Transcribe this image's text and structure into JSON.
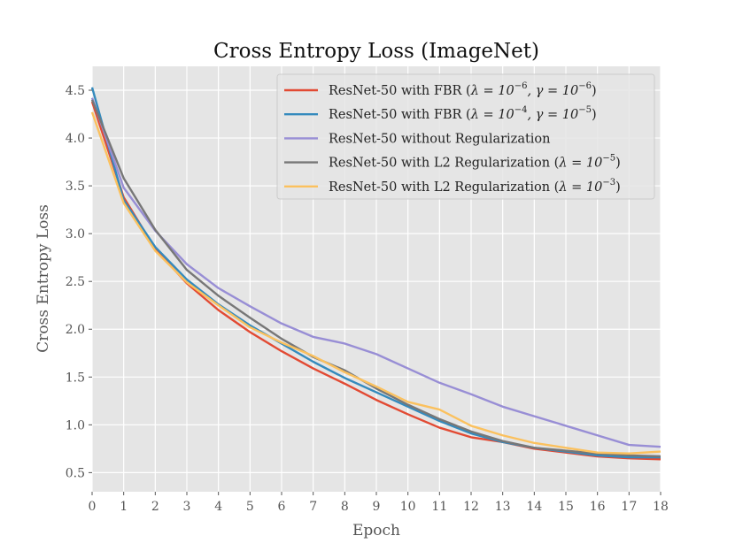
{
  "chart_data": {
    "type": "line",
    "title": "Cross Entropy Loss (ImageNet)",
    "xlabel": "Epoch",
    "ylabel": "Cross Entropy Loss",
    "xlim": [
      0,
      18
    ],
    "ylim": [
      0.3,
      4.75
    ],
    "x_ticks": [
      0,
      1,
      2,
      3,
      4,
      5,
      6,
      7,
      8,
      9,
      10,
      11,
      12,
      13,
      14,
      15,
      16,
      17,
      18
    ],
    "y_ticks": [
      0.5,
      1.0,
      1.5,
      2.0,
      2.5,
      3.0,
      3.5,
      4.0,
      4.5
    ],
    "y_tick_labels": [
      "0.5",
      "1.0",
      "1.5",
      "2.0",
      "2.5",
      "3.0",
      "3.5",
      "4.0",
      "4.5"
    ],
    "grid": true,
    "legend_position": "top-right",
    "x": [
      0,
      1,
      2,
      3,
      4,
      5,
      6,
      7,
      8,
      9,
      10,
      11,
      12,
      13,
      14,
      15,
      16,
      17,
      18
    ],
    "series": [
      {
        "name": "ResNet-50 with FBR",
        "legend_prefix": "ResNet-50 with FBR (",
        "legend_math": [
          [
            "λ = 10",
            "−6"
          ],
          [
            ", γ = 10",
            "−6"
          ]
        ],
        "legend_suffix": ")",
        "color": "#E24A33",
        "values": [
          4.38,
          3.38,
          2.84,
          2.48,
          2.2,
          1.97,
          1.77,
          1.59,
          1.43,
          1.26,
          1.11,
          0.97,
          0.87,
          0.82,
          0.75,
          0.71,
          0.67,
          0.65,
          0.64
        ]
      },
      {
        "name": "ResNet-50 with FBR",
        "legend_prefix": "ResNet-50 with FBR (",
        "legend_math": [
          [
            "λ = 10",
            "−4"
          ],
          [
            ", γ = 10",
            "−5"
          ]
        ],
        "legend_suffix": ")",
        "color": "#348ABD",
        "values": [
          4.53,
          3.35,
          2.86,
          2.52,
          2.26,
          2.04,
          1.85,
          1.66,
          1.49,
          1.34,
          1.19,
          1.04,
          0.91,
          0.82,
          0.76,
          0.72,
          0.68,
          0.66,
          0.66
        ]
      },
      {
        "name": "ResNet-50 without Regularization",
        "legend_prefix": "ResNet-50 without Regularization",
        "legend_math": [],
        "legend_suffix": "",
        "color": "#988ED5",
        "values": [
          4.42,
          3.48,
          3.03,
          2.68,
          2.43,
          2.24,
          2.06,
          1.92,
          1.85,
          1.74,
          1.59,
          1.44,
          1.32,
          1.19,
          1.09,
          0.99,
          0.89,
          0.79,
          0.77
        ]
      },
      {
        "name": "ResNet-50 with L2 Regularization",
        "legend_prefix": "ResNet-50 with L2 Regularization (",
        "legend_math": [
          [
            "λ = 10",
            "−5"
          ]
        ],
        "legend_suffix": ")",
        "color": "#777777",
        "values": [
          4.4,
          3.58,
          3.04,
          2.62,
          2.35,
          2.12,
          1.9,
          1.71,
          1.57,
          1.38,
          1.21,
          1.06,
          0.93,
          0.83,
          0.76,
          0.73,
          0.7,
          0.68,
          0.67
        ]
      },
      {
        "name": "ResNet-50 with L2 Regularization",
        "legend_prefix": "ResNet-50 with L2 Regularization (",
        "legend_math": [
          [
            "λ = 10",
            "−3"
          ]
        ],
        "legend_suffix": ")",
        "color": "#FBC15E",
        "values": [
          4.27,
          3.32,
          2.82,
          2.49,
          2.25,
          2.02,
          1.86,
          1.72,
          1.55,
          1.4,
          1.24,
          1.16,
          0.99,
          0.89,
          0.81,
          0.76,
          0.71,
          0.7,
          0.72
        ]
      }
    ]
  }
}
